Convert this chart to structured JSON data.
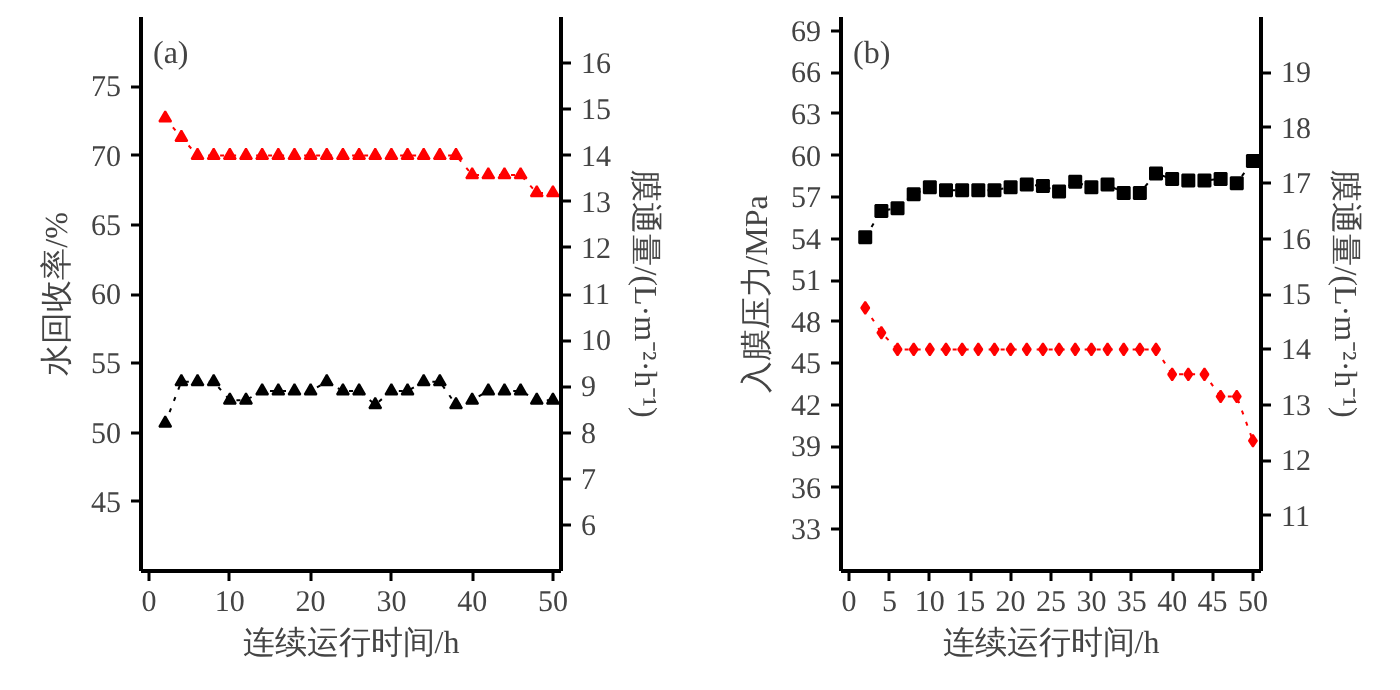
{
  "chart_data": [
    {
      "type": "line",
      "xlabel": "连续运行时间/h",
      "ylabel": "水回收率/%",
      "y2label": "膜通量/(L·m⁻²·h⁻¹)",
      "annotations": [
        "(a)"
      ],
      "x": [
        2,
        4,
        6,
        8,
        10,
        12,
        14,
        16,
        18,
        20,
        22,
        24,
        26,
        28,
        30,
        32,
        34,
        36,
        38,
        40,
        42,
        44,
        46,
        48,
        50
      ],
      "xlim": [
        -1,
        51
      ],
      "xticks": [
        0,
        10,
        20,
        30,
        40,
        50
      ],
      "ylim": [
        40,
        80
      ],
      "yticks": [
        45,
        50,
        55,
        60,
        65,
        70,
        75
      ],
      "y2lim": [
        5,
        17
      ],
      "y2ticks": [
        6,
        7,
        8,
        9,
        10,
        11,
        12,
        13,
        14,
        15,
        16
      ],
      "grid": false,
      "line_style": "dotted",
      "series": [
        {
          "color": "#ff0000",
          "marker": "triangle",
          "values": [
            72.7,
            71.3,
            70,
            70,
            70,
            70,
            70,
            70,
            70,
            70,
            70,
            70,
            70,
            70,
            70,
            70,
            70,
            70,
            70,
            68.6,
            68.6,
            68.6,
            68.6,
            67.3,
            67.3
          ]
        },
        {
          "color": "#000000",
          "marker": "triangle",
          "axis": "y2",
          "values": [
            8.2,
            9.1,
            9.1,
            9.1,
            8.7,
            8.7,
            8.9,
            8.9,
            8.9,
            8.9,
            9.1,
            8.9,
            8.9,
            8.6,
            8.9,
            8.9,
            9.1,
            9.1,
            8.6,
            8.7,
            8.9,
            8.9,
            8.9,
            8.7,
            8.7
          ]
        }
      ]
    },
    {
      "type": "line",
      "xlabel": "连续运行时间/h",
      "ylabel": "入膜压力/MPa",
      "y2label": "膜通量/(L·m⁻²·h⁻¹)",
      "annotations": [
        "(b)"
      ],
      "x": [
        2,
        4,
        6,
        8,
        10,
        12,
        14,
        16,
        18,
        20,
        22,
        24,
        26,
        28,
        30,
        32,
        34,
        36,
        38,
        40,
        42,
        44,
        46,
        48,
        50
      ],
      "xlim": [
        -1,
        51
      ],
      "xticks": [
        0,
        5,
        10,
        15,
        20,
        25,
        30,
        35,
        40,
        45,
        50
      ],
      "ylim": [
        30,
        70
      ],
      "yticks": [
        33,
        36,
        39,
        42,
        45,
        48,
        51,
        54,
        57,
        60,
        63,
        66,
        69
      ],
      "y2lim": [
        10,
        20
      ],
      "y2ticks": [
        11,
        12,
        13,
        14,
        15,
        16,
        17,
        18,
        19
      ],
      "grid": false,
      "line_style": "dotted",
      "series": [
        {
          "color": "#000000",
          "marker": "square",
          "values": [
            54.1,
            56.0,
            56.2,
            57.2,
            57.7,
            57.5,
            57.5,
            57.5,
            57.5,
            57.7,
            57.9,
            57.8,
            57.4,
            58.1,
            57.7,
            57.9,
            57.3,
            57.3,
            58.7,
            58.3,
            58.2,
            58.2,
            58.3,
            58.0,
            59.6
          ]
        },
        {
          "color": "#ff0000",
          "marker": "diamond",
          "axis": "y2",
          "values": [
            14.75,
            14.3,
            14,
            14,
            14,
            14,
            14,
            14,
            14,
            14,
            14,
            14,
            14,
            14,
            14,
            14,
            14,
            14,
            14,
            13.55,
            13.55,
            13.55,
            13.15,
            13.15,
            12.35
          ]
        }
      ]
    }
  ]
}
